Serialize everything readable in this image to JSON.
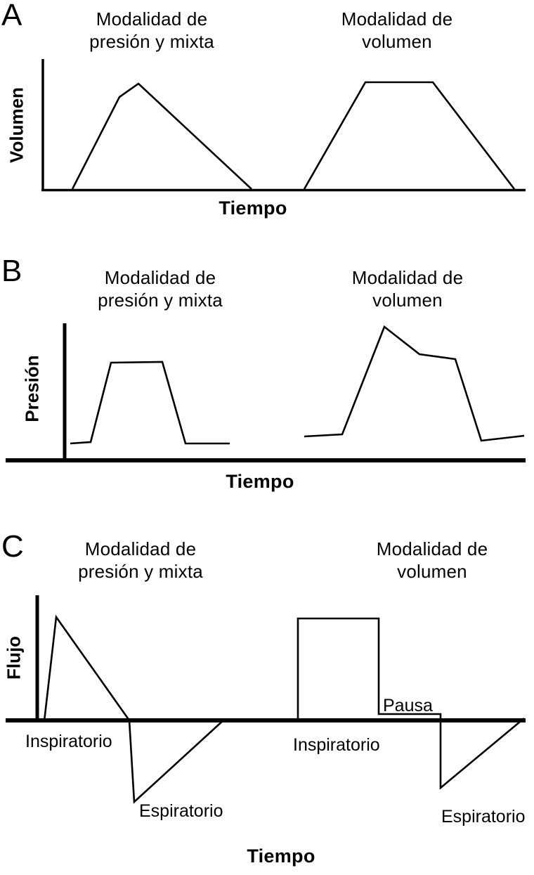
{
  "figure": {
    "background": "#ffffff",
    "line_color": "#000000",
    "text_color": "#000000"
  },
  "chart_data": [
    {
      "panel": "A",
      "type": "line",
      "ylabel": "Volumen",
      "xlabel": "Tiempo",
      "titles": {
        "left": "Modalidad de\npresión y mixta",
        "right": "Modalidad de\nvolumen"
      },
      "axis_ticks": "none",
      "units": "arbitrary (qualitative ventilator waveform, coordinates estimated in figure pixels)",
      "axes": {
        "y_axis": {
          "x1": 61,
          "y1": 84,
          "x2": 61,
          "y2": 272,
          "stroke_width": 3.5
        },
        "x_axis": {
          "x1": 59,
          "y1": 270.5,
          "x2": 748,
          "y2": 270.5,
          "stroke_width": 3.5
        }
      },
      "series": [
        {
          "name": "volumen-curve-presion-mixta",
          "points": [
            [
              103,
              269
            ],
            [
              170,
              138
            ],
            [
              197,
              119
            ],
            [
              358,
              269
            ]
          ]
        },
        {
          "name": "volumen-curve-volumen",
          "points": [
            [
              433,
              269
            ],
            [
              520,
              117
            ],
            [
              616,
              117
            ],
            [
              732,
              269
            ]
          ]
        }
      ]
    },
    {
      "panel": "B",
      "type": "line",
      "ylabel": "Presión",
      "xlabel": "Tiempo",
      "titles": {
        "left": "Modalidad de\npresión y mixta",
        "right": "Modalidad de\nvolumen"
      },
      "axis_ticks": "none",
      "units": "arbitrary (qualitative ventilator waveform, coordinates estimated in figure pixels)",
      "axes": {
        "y_axis": {
          "x1": 92,
          "y1": 460,
          "x2": 92,
          "y2": 652,
          "stroke_width": 5
        },
        "x_axis": {
          "x1": 8,
          "y1": 655,
          "x2": 748,
          "y2": 655,
          "stroke_width": 6
        }
      },
      "series": [
        {
          "name": "presion-curve-presion-mixta",
          "points": [
            [
              100,
              631
            ],
            [
              129,
              629
            ],
            [
              158,
              516
            ],
            [
              231,
              515
            ],
            [
              264,
              631
            ],
            [
              327,
              631
            ]
          ]
        },
        {
          "name": "presion-curve-volumen",
          "points": [
            [
              433,
              621
            ],
            [
              487,
              618
            ],
            [
              547,
              465
            ],
            [
              597,
              504
            ],
            [
              648,
              511
            ],
            [
              685,
              627
            ],
            [
              746,
              620
            ]
          ]
        }
      ]
    },
    {
      "panel": "C",
      "type": "line",
      "ylabel": "Flujo",
      "xlabel": "Tiempo",
      "titles": {
        "left": "Modalidad de\npresión y mixta",
        "right": "Modalidad de\nvolumen"
      },
      "axis_ticks": "none",
      "units": "arbitrary (qualitative ventilator waveform, positive = inspiratory flow, negative = expiratory flow)",
      "axes": {
        "y_axis": {
          "x1": 53,
          "y1": 847,
          "x2": 53,
          "y2": 1028,
          "stroke_width": 5
        },
        "x_axis": {
          "x1": 8,
          "y1": 1025,
          "x2": 748,
          "y2": 1025,
          "stroke_width": 6
        }
      },
      "series": [
        {
          "name": "flujo-curve-presion-mixta",
          "points": [
            [
              63,
              1026
            ],
            [
              80,
              878
            ],
            [
              184,
              1025
            ],
            [
              191,
              1141
            ],
            [
              320,
              1023
            ]
          ]
        },
        {
          "name": "flujo-curve-volumen",
          "points": [
            [
              424,
              1025
            ],
            [
              424,
              880
            ],
            [
              539,
              880
            ],
            [
              539,
              1016
            ],
            [
              627,
              1016
            ],
            [
              627,
              1121
            ],
            [
              746,
              1022
            ]
          ]
        }
      ],
      "annotations": {
        "insp_left": "Inspiratorio",
        "esp_left": "Espiratorio",
        "insp_right": "Inspiratorio",
        "pausa": "Pausa",
        "esp_right": "Espiratorio"
      }
    }
  ]
}
